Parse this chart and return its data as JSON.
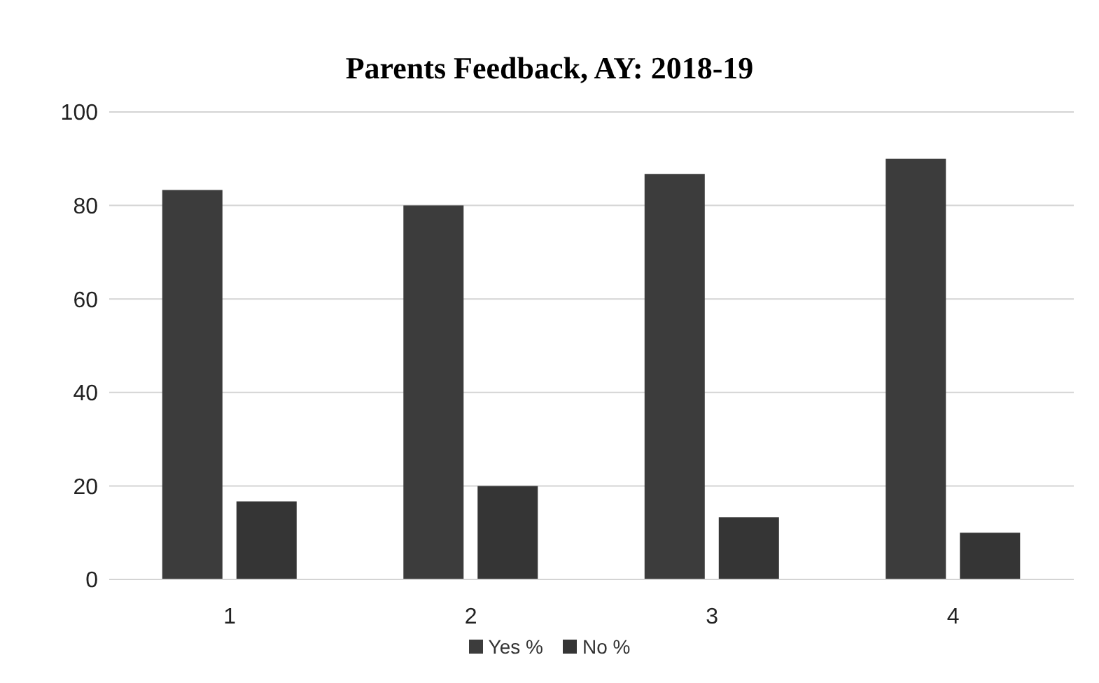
{
  "chart_data": {
    "type": "bar",
    "title": "Parents Feedback, AY: 2018-19",
    "categories": [
      "1",
      "2",
      "3",
      "4"
    ],
    "series": [
      {
        "name": "Yes %",
        "color": "#3c3c3c",
        "values": [
          83.3,
          80,
          86.7,
          90
        ]
      },
      {
        "name": "No %",
        "color": "#353535",
        "values": [
          16.7,
          20,
          13.3,
          10
        ]
      }
    ],
    "ylim": [
      0,
      100
    ],
    "yticks": [
      0,
      20,
      40,
      60,
      80,
      100
    ],
    "grid": "y",
    "legend": "bottom"
  }
}
